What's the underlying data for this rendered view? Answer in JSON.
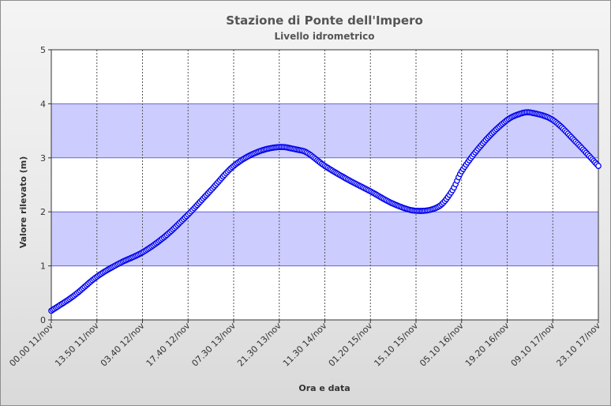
{
  "chart_data": {
    "type": "line",
    "title": "Stazione di Ponte dell'Impero",
    "subtitle": "Livello idrometrico",
    "xlabel": "Ora e data",
    "ylabel": "Valore rilevato (m)",
    "ylim": [
      0,
      5
    ],
    "y_ticks": [
      "0",
      "1",
      "2",
      "3",
      "4",
      "5"
    ],
    "x_ticks": [
      "00.00 11/nov",
      "13.50 11/nov",
      "03.40 12/nov",
      "17.40 12/nov",
      "07.30 13/nov",
      "21.30 13/nov",
      "11.30 14/nov",
      "01.20 15/nov",
      "15.10 15/nov",
      "05.10 16/nov",
      "19.20 16/nov",
      "09.10 17/nov",
      "23.10 17/nov"
    ],
    "bands": [
      [
        1,
        2
      ],
      [
        3,
        4
      ]
    ],
    "grid": true,
    "colors": {
      "line": "#0000ee",
      "band": "#ccccff",
      "plot_bg": "#ffffff",
      "grid": "#555555"
    },
    "series": [
      {
        "x_index": [
          0,
          0.5,
          1,
          1.5,
          2,
          2.5,
          3,
          3.5,
          4,
          4.5,
          5,
          5.4,
          5.6,
          6,
          6.5,
          7,
          7.5,
          8,
          8.5,
          8.8,
          9,
          9.5,
          10,
          10.3,
          10.5,
          11,
          11.5,
          12
        ],
        "values": [
          0.17,
          0.45,
          0.8,
          1.05,
          1.25,
          1.55,
          1.95,
          2.4,
          2.85,
          3.1,
          3.2,
          3.15,
          3.1,
          2.85,
          2.6,
          2.38,
          2.15,
          2.02,
          2.1,
          2.4,
          2.75,
          3.3,
          3.7,
          3.82,
          3.84,
          3.7,
          3.3,
          2.85
        ]
      }
    ]
  }
}
